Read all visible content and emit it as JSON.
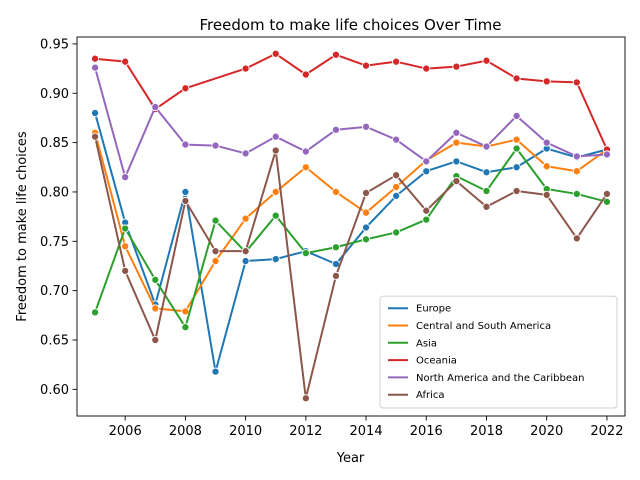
{
  "chart_data": {
    "type": "line",
    "title": "Freedom to make life choices Over Time",
    "xlabel": "Year",
    "ylabel": "Freedom to make life choices",
    "xlim": [
      2004.4,
      2022.6
    ],
    "ylim": [
      0.573,
      0.957
    ],
    "xticks": [
      2006,
      2008,
      2010,
      2012,
      2014,
      2016,
      2018,
      2020,
      2022
    ],
    "yticks": [
      0.6,
      0.65,
      0.7,
      0.75,
      0.8,
      0.85,
      0.9,
      0.95
    ],
    "ytick_labels": [
      "0.60",
      "0.65",
      "0.70",
      "0.75",
      "0.80",
      "0.85",
      "0.90",
      "0.95"
    ],
    "grid": false,
    "legend_position": "lower right",
    "x": [
      2005,
      2006,
      2007,
      2008,
      2009,
      2010,
      2011,
      2012,
      2013,
      2014,
      2015,
      2016,
      2017,
      2018,
      2019,
      2020,
      2021,
      2022
    ],
    "series": [
      {
        "name": "Europe",
        "color": "#1f77b4",
        "values": [
          0.88,
          0.769,
          0.686,
          0.8,
          0.618,
          0.73,
          0.732,
          0.74,
          0.727,
          0.764,
          0.796,
          0.821,
          0.831,
          0.82,
          0.825,
          0.844,
          0.835,
          0.843
        ]
      },
      {
        "name": "Central and South America",
        "color": "#ff7f0e",
        "values": [
          0.86,
          0.745,
          0.682,
          0.679,
          0.73,
          0.773,
          0.8,
          0.825,
          0.8,
          0.779,
          0.805,
          0.832,
          0.85,
          0.846,
          0.853,
          0.826,
          0.821,
          0.843
        ]
      },
      {
        "name": "Asia",
        "color": "#2ca02c",
        "values": [
          0.678,
          0.763,
          0.711,
          0.663,
          0.771,
          0.739,
          0.776,
          0.738,
          0.744,
          0.752,
          0.759,
          0.772,
          0.816,
          0.801,
          0.844,
          0.803,
          0.798,
          0.79
        ]
      },
      {
        "name": "Oceania",
        "color": "#d62728",
        "values": [
          0.935,
          0.932,
          0.884,
          0.905,
          null,
          0.925,
          0.94,
          0.919,
          0.939,
          0.928,
          0.932,
          0.925,
          0.927,
          0.933,
          0.915,
          0.912,
          0.911,
          0.843
        ]
      },
      {
        "name": "North America and the Caribbean",
        "color": "#9467bd",
        "values": [
          0.926,
          0.815,
          0.886,
          0.848,
          0.847,
          0.839,
          0.856,
          0.841,
          0.863,
          0.866,
          0.853,
          0.831,
          0.86,
          0.846,
          0.877,
          0.85,
          0.836,
          0.838
        ]
      },
      {
        "name": "Africa",
        "color": "#8c564b",
        "values": [
          0.856,
          0.72,
          0.65,
          0.791,
          0.74,
          0.74,
          0.842,
          0.591,
          0.715,
          0.799,
          0.817,
          0.781,
          0.811,
          0.785,
          0.801,
          0.797,
          0.753,
          0.798
        ]
      }
    ]
  }
}
